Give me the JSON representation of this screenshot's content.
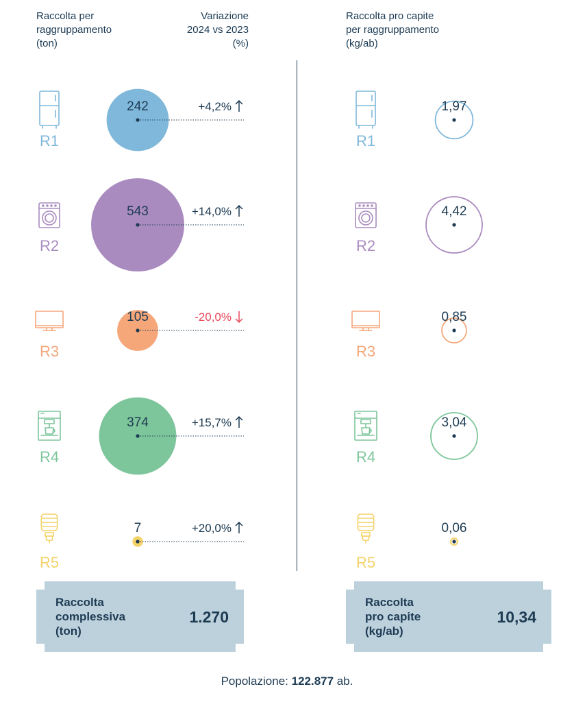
{
  "headers": {
    "left": "Raccolta per\nraggruppamento\n(ton)",
    "variation": "Variazione\n2024 vs 2023\n(%)",
    "right": "Raccolta pro capite\nper raggruppamento\n(kg/ab)"
  },
  "colors": {
    "R1": "#7fb8da",
    "R2": "#a98bbf",
    "R3": "#f5a77a",
    "R4": "#7dc59b",
    "R5": "#f3d36a",
    "text": "#1d3b53",
    "negative": "#e8495b",
    "panel": "#bdd1dc"
  },
  "chart_data": [
    {
      "type": "bubble",
      "title": "Raccolta per raggruppamento (ton)",
      "categories": [
        "R1",
        "R2",
        "R3",
        "R4",
        "R5"
      ],
      "values": [
        242,
        543,
        105,
        374,
        7
      ],
      "value_labels": [
        "242",
        "543",
        "105",
        "374",
        "7"
      ],
      "variation_labels": [
        "+4,2%",
        "+14,0%",
        "-20,0%",
        "+15,7%",
        "+20,0%"
      ],
      "variation_values": [
        4.2,
        14.0,
        -20.0,
        15.7,
        20.0
      ]
    },
    {
      "type": "bubble",
      "title": "Raccolta pro capite per raggruppamento (kg/ab)",
      "categories": [
        "R1",
        "R2",
        "R3",
        "R4",
        "R5"
      ],
      "values": [
        1.97,
        4.42,
        0.85,
        3.04,
        0.06
      ],
      "value_labels": [
        "1,97",
        "4,42",
        "0,85",
        "3,04",
        "0,06"
      ]
    }
  ],
  "icons": [
    "fridge-icon",
    "washing-machine-icon",
    "monitor-icon",
    "coffee-machine-icon",
    "light-bulb-icon"
  ],
  "totals": {
    "left_label": "Raccolta\ncomplessiva\n(ton)",
    "left_value": "1.270",
    "right_label": "Raccolta\npro capite\n(kg/ab)",
    "right_value": "10,34"
  },
  "footer": {
    "prefix": "Popolazione: ",
    "value": "122.877",
    "suffix": " ab."
  }
}
